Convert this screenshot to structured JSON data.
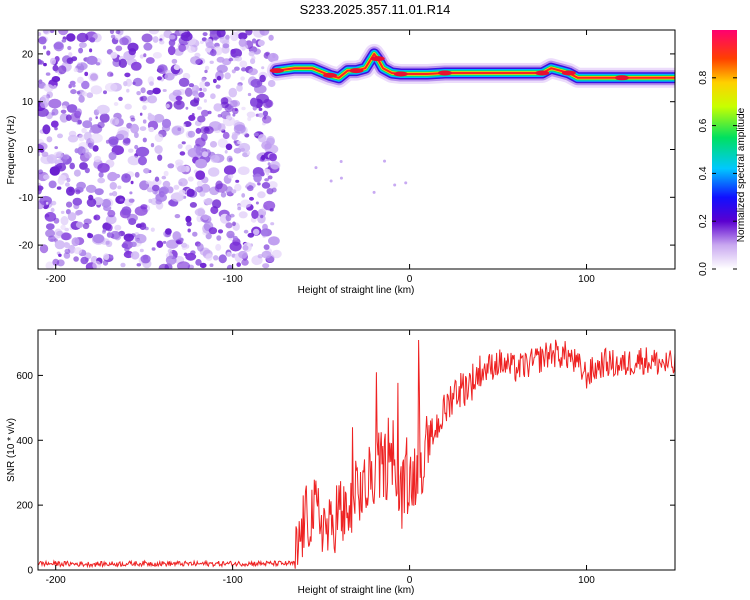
{
  "title": "S233.2025.357.11.01.R14",
  "colors": {
    "snr_line": "#ee2222",
    "axis": "#000000"
  },
  "chart_data": [
    {
      "type": "heatmap",
      "xlabel": "Height of straight line (km)",
      "ylabel": "Frequency (Hz)",
      "xlim": [
        -210,
        150
      ],
      "ylim": [
        -25,
        25
      ],
      "xticks": [
        "-200",
        "-100",
        "0",
        "100"
      ],
      "yticks": [
        "20",
        "10",
        "0",
        "-10",
        "-20"
      ],
      "colorbar": {
        "label": "Normalized spectral amplitude",
        "range": [
          0.0,
          1.0
        ],
        "ticks": [
          "0.0",
          "0.2",
          "0.4",
          "0.6",
          "0.8"
        ]
      },
      "noise_region_x": [
        -210,
        -75
      ],
      "ridge": {
        "x": [
          -75,
          -65,
          -55,
          -45,
          -40,
          -35,
          -30,
          -25,
          -20,
          -18,
          -15,
          -10,
          -5,
          0,
          10,
          20,
          40,
          60,
          75,
          80,
          85,
          90,
          95,
          100,
          120,
          140,
          150
        ],
        "freq": [
          16.5,
          17,
          17,
          15.5,
          15,
          16.5,
          16.5,
          17,
          20,
          19,
          17,
          16,
          15.8,
          15.8,
          15.8,
          16,
          16,
          16,
          16,
          17,
          16.5,
          16,
          15,
          15,
          15,
          15,
          15
        ]
      }
    },
    {
      "type": "line",
      "xlabel": "Height of straight line (km)",
      "ylabel": "SNR (10 * v/v)",
      "xlim": [
        -210,
        150
      ],
      "ylim": [
        0,
        740
      ],
      "xticks": [
        "-200",
        "-100",
        "0",
        "100"
      ],
      "yticks": [
        "0",
        "200",
        "400",
        "600"
      ],
      "series": [
        {
          "x": [
            -210,
            -180,
            -150,
            -120,
            -90,
            -65,
            -60,
            -55,
            -50,
            -45,
            -40,
            -35,
            -30,
            -25,
            -20,
            -15,
            -10,
            -5,
            0,
            5,
            10,
            15,
            20,
            25,
            30,
            35,
            40,
            50,
            60,
            70,
            80,
            90,
            100,
            110,
            120,
            130,
            140,
            150
          ],
          "y": [
            20,
            18,
            20,
            19,
            20,
            20,
            140,
            180,
            160,
            110,
            200,
            130,
            240,
            250,
            300,
            330,
            310,
            230,
            270,
            320,
            380,
            440,
            490,
            550,
            560,
            580,
            610,
            640,
            620,
            640,
            670,
            660,
            600,
            640,
            630,
            650,
            640,
            630
          ]
        }
      ]
    }
  ]
}
